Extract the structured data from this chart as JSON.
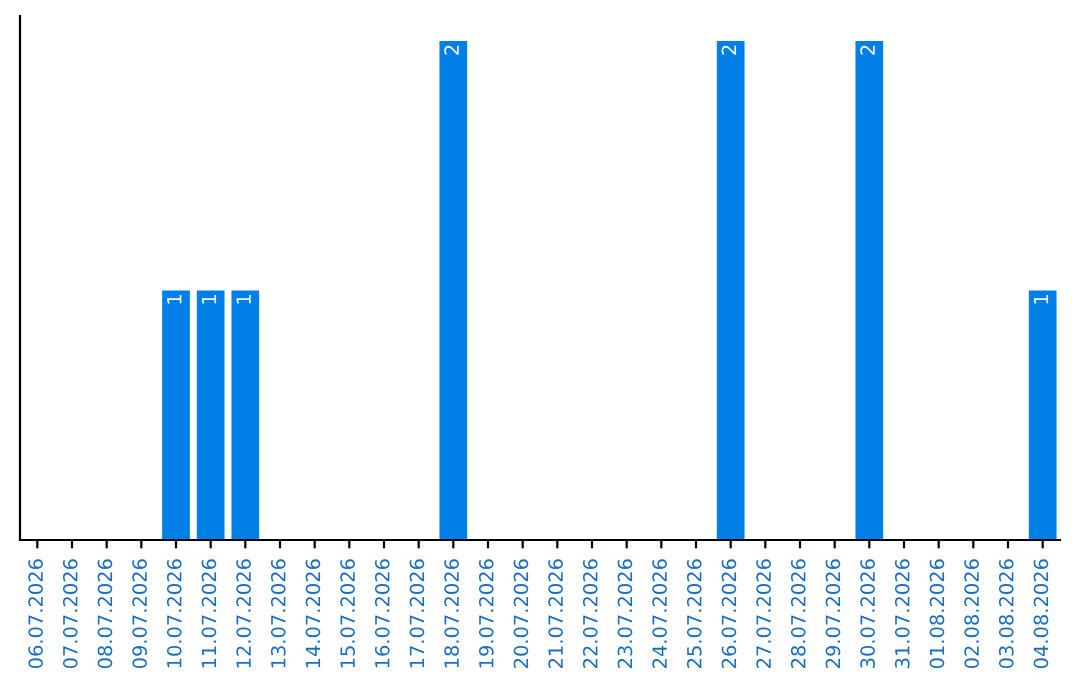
{
  "chart_data": {
    "type": "bar",
    "categories": [
      "06.07.2026",
      "07.07.2026",
      "08.07.2026",
      "09.07.2026",
      "10.07.2026",
      "11.07.2026",
      "12.07.2026",
      "13.07.2026",
      "14.07.2026",
      "15.07.2026",
      "16.07.2026",
      "17.07.2026",
      "18.07.2026",
      "19.07.2026",
      "20.07.2026",
      "21.07.2026",
      "22.07.2026",
      "23.07.2026",
      "24.07.2026",
      "25.07.2026",
      "26.07.2026",
      "27.07.2026",
      "28.07.2026",
      "29.07.2026",
      "30.07.2026",
      "31.07.2026",
      "01.08.2026",
      "02.08.2026",
      "03.08.2026",
      "04.08.2026"
    ],
    "values": [
      0,
      0,
      0,
      0,
      1,
      1,
      1,
      0,
      0,
      0,
      0,
      0,
      2,
      0,
      0,
      0,
      0,
      0,
      0,
      0,
      2,
      0,
      0,
      0,
      2,
      0,
      0,
      0,
      0,
      1
    ],
    "value_labels": [
      null,
      null,
      null,
      null,
      "1",
      "1",
      "1",
      null,
      null,
      null,
      null,
      null,
      "2",
      null,
      null,
      null,
      null,
      null,
      null,
      null,
      "2",
      null,
      null,
      null,
      "2",
      null,
      null,
      null,
      null,
      "1"
    ],
    "color": "#0080e6",
    "grid": false,
    "legend": false
  }
}
